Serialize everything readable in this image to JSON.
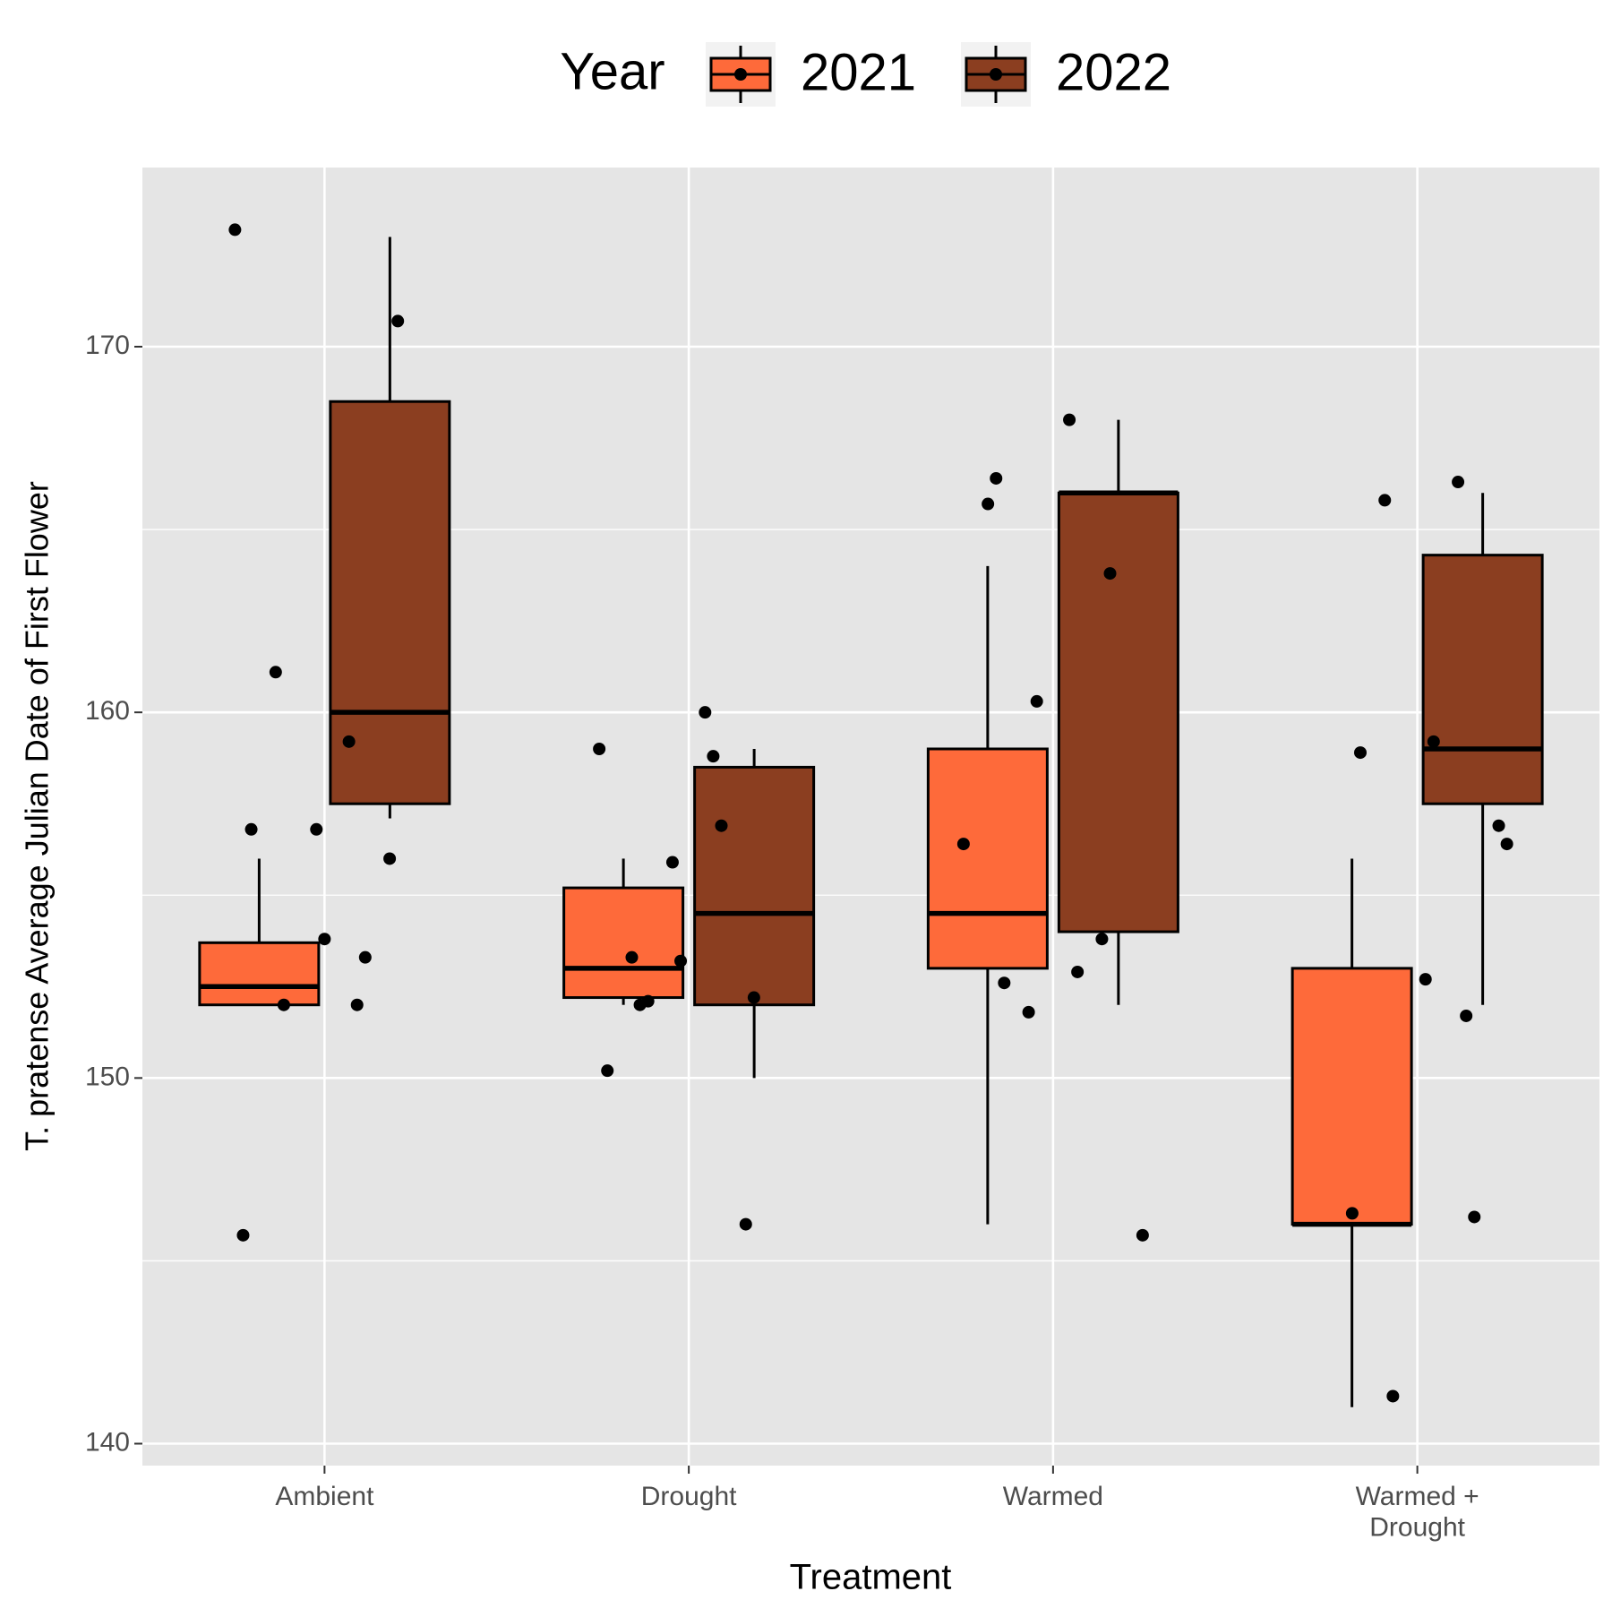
{
  "chart_data": {
    "type": "boxplot",
    "x_label": "Treatment",
    "y_label": "T. pratense Average Julian Date of First Flower",
    "legend_title": "Year",
    "legend_position": "top",
    "grid": true,
    "categories": [
      "Ambient",
      "Drought",
      "Warmed",
      "Warmed +\nDrought"
    ],
    "ylim": [
      139.4,
      174.9
    ],
    "yticks": [
      140,
      150,
      160,
      170
    ],
    "series": [
      {
        "name": "2021",
        "color": "#fe6a3a",
        "boxes": [
          {
            "min": 152,
            "q1": 152,
            "median": 152.5,
            "q3": 153.7,
            "max": 156
          },
          {
            "min": 152,
            "q1": 152.2,
            "median": 153,
            "q3": 155.2,
            "max": 156
          },
          {
            "min": 146,
            "q1": 153,
            "median": 154.5,
            "q3": 159,
            "max": 164
          },
          {
            "min": 141,
            "q1": 146,
            "median": 146,
            "q3": 153,
            "max": 156
          }
        ]
      },
      {
        "name": "2022",
        "color": "#8b3e20",
        "boxes": [
          {
            "min": 157.1,
            "q1": 157.5,
            "median": 160,
            "q3": 168.5,
            "max": 173
          },
          {
            "min": 150,
            "q1": 152,
            "median": 154.5,
            "q3": 158.5,
            "max": 159
          },
          {
            "min": 152,
            "q1": 154,
            "median": 166,
            "q3": 166,
            "max": 168
          },
          {
            "min": 152,
            "q1": 157.5,
            "median": 159,
            "q3": 164.3,
            "max": 166
          }
        ]
      }
    ],
    "points": [
      [
        173.2,
        159.2,
        161.1,
        156,
        156.8,
        145.7,
        152,
        152,
        170.7,
        153.8,
        156.8,
        153.3
      ],
      [
        160,
        153.3,
        146,
        155.9,
        159,
        158.8,
        152,
        152.2,
        153.2,
        150.2,
        156.9,
        152.1
      ],
      [
        165.7,
        153.8,
        151.8,
        145.7,
        168,
        166.4,
        163.8,
        160.3,
        156.4,
        152.9,
        152.6
      ],
      [
        166.3,
        165.8,
        156.9,
        152.7,
        146.3,
        151.7,
        141.3,
        156.4,
        159.2,
        158.9,
        146.2
      ]
    ]
  }
}
